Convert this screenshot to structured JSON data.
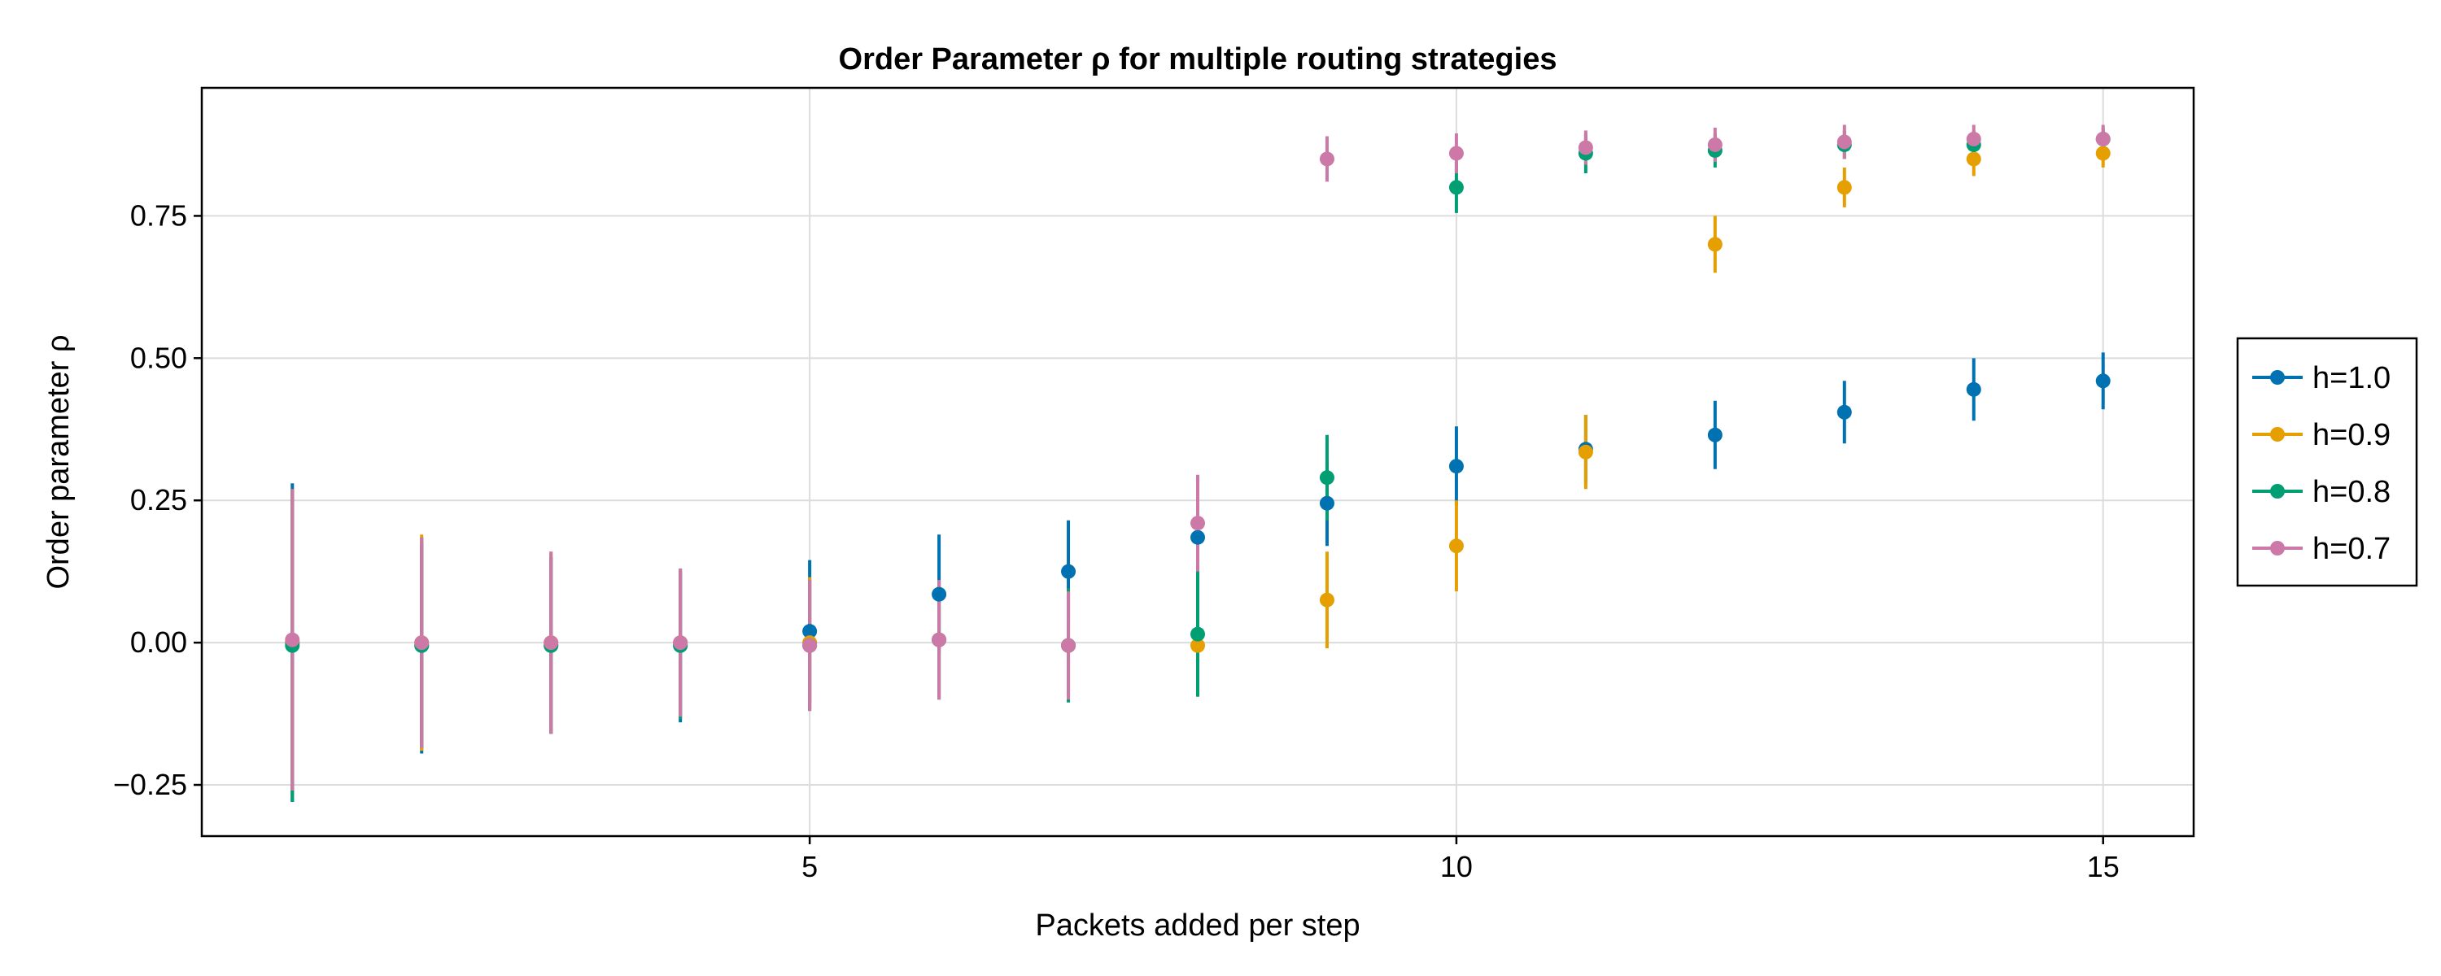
{
  "chart_data": {
    "type": "scatter",
    "title": "Order Parameter ρ for multiple routing strategies",
    "xlabel": "Packets added per step",
    "ylabel": "Order parameter ρ",
    "xlim": [
      0.3,
      15.7
    ],
    "ylim": [
      -0.34,
      0.975
    ],
    "x_ticks": [
      5,
      10,
      15
    ],
    "x_tick_labels": [
      "5",
      "10",
      "15"
    ],
    "y_ticks": [
      -0.25,
      0,
      0.25,
      0.5,
      0.75
    ],
    "y_tick_labels": [
      "−0.25",
      "0.00",
      "0.25",
      "0.50",
      "0.75"
    ],
    "grid": true,
    "legend_position": "right",
    "series": [
      {
        "name": "h=1.0",
        "color": "#0072b2",
        "x": [
          1,
          2,
          3,
          4,
          5,
          6,
          7,
          8,
          9,
          10,
          11,
          12,
          13,
          14,
          15
        ],
        "y": [
          0.0,
          -0.005,
          -0.005,
          -0.005,
          0.02,
          0.085,
          0.125,
          0.185,
          0.245,
          0.31,
          0.34,
          0.365,
          0.405,
          0.445,
          0.46
        ],
        "err": [
          0.28,
          0.19,
          0.155,
          0.135,
          0.125,
          0.105,
          0.09,
          0.07,
          0.075,
          0.07,
          0.06,
          0.06,
          0.055,
          0.055,
          0.05
        ]
      },
      {
        "name": "h=0.9",
        "color": "#e69f00",
        "x": [
          1,
          2,
          3,
          4,
          5,
          6,
          7,
          8,
          9,
          10,
          11,
          12,
          13,
          14,
          15
        ],
        "y": [
          0.0,
          0.0,
          0.0,
          0.0,
          0.0,
          0.005,
          -0.005,
          -0.005,
          0.075,
          0.17,
          0.335,
          0.7,
          0.8,
          0.85,
          0.86
        ],
        "err": [
          0.27,
          0.19,
          0.16,
          0.13,
          0.115,
          0.105,
          0.1,
          0.09,
          0.085,
          0.08,
          0.065,
          0.05,
          0.035,
          0.03,
          0.025
        ]
      },
      {
        "name": "h=0.8",
        "color": "#009e73",
        "x": [
          1,
          2,
          3,
          4,
          5,
          6,
          7,
          8,
          9,
          10,
          11,
          12,
          13,
          14,
          15
        ],
        "y": [
          -0.005,
          -0.005,
          -0.005,
          -0.005,
          -0.005,
          0.005,
          -0.005,
          0.015,
          0.29,
          0.8,
          0.86,
          0.865,
          0.875,
          0.875,
          0.885
        ],
        "err": [
          0.275,
          0.18,
          0.155,
          0.13,
          0.115,
          0.105,
          0.1,
          0.11,
          0.075,
          0.045,
          0.035,
          0.03,
          0.025,
          0.025,
          0.02
        ]
      },
      {
        "name": "h=0.7",
        "color": "#cc79a7",
        "x": [
          1,
          2,
          3,
          4,
          5,
          6,
          7,
          8,
          9,
          10,
          11,
          12,
          13,
          14,
          15
        ],
        "y": [
          0.005,
          0.0,
          0.0,
          0.0,
          -0.005,
          0.005,
          -0.005,
          0.21,
          0.85,
          0.86,
          0.87,
          0.875,
          0.88,
          0.885,
          0.885
        ],
        "err": [
          0.265,
          0.185,
          0.16,
          0.13,
          0.115,
          0.105,
          0.095,
          0.085,
          0.04,
          0.035,
          0.03,
          0.03,
          0.03,
          0.025,
          0.025
        ]
      }
    ]
  }
}
